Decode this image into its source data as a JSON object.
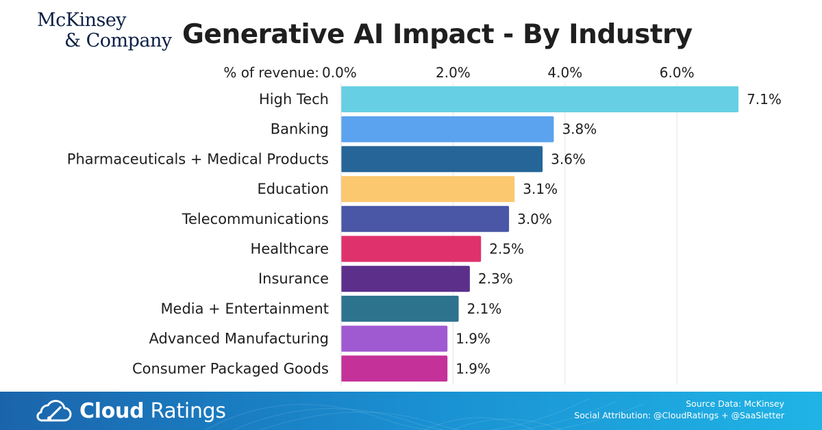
{
  "header": {
    "logo_line1": "McKinsey",
    "logo_line2": "& Company",
    "title": "Generative AI Impact - By Industry"
  },
  "chart_data": {
    "type": "bar",
    "orientation": "horizontal",
    "title": "Generative AI Impact - By Industry",
    "axis_label": "% of revenue:",
    "xlim": [
      0,
      7.1
    ],
    "ticks": [
      0,
      2,
      4,
      6
    ],
    "tick_labels": [
      "0.0%",
      "2.0%",
      "4.0%",
      "6.0%"
    ],
    "grid": true,
    "categories": [
      "High Tech",
      "Banking",
      "Pharmaceuticals + Medical Products",
      "Education",
      "Telecommunications",
      "Healthcare",
      "Insurance",
      "Media + Entertainment",
      "Advanced Manufacturing",
      "Consumer Packaged Goods"
    ],
    "values": [
      7.1,
      3.8,
      3.6,
      3.1,
      3.0,
      2.5,
      2.3,
      2.1,
      1.9,
      1.9
    ],
    "value_labels": [
      "7.1%",
      "3.8%",
      "3.6%",
      "3.1%",
      "3.0%",
      "2.5%",
      "2.3%",
      "2.1%",
      "1.9%",
      "1.9%"
    ],
    "colors": [
      "#67cfe4",
      "#5ba3ef",
      "#256597",
      "#fbc86f",
      "#4a56a6",
      "#df326d",
      "#5c2f8b",
      "#2e738e",
      "#a05ad1",
      "#c43199"
    ]
  },
  "footer": {
    "brand_bold": "Cloud",
    "brand_light": "Ratings",
    "source": "Source Data: McKinsey",
    "attribution": "Social Attribution: @CloudRatings + @SaaSletter",
    "gradient_start": "#1b64ab",
    "gradient_end": "#20b4e6"
  }
}
